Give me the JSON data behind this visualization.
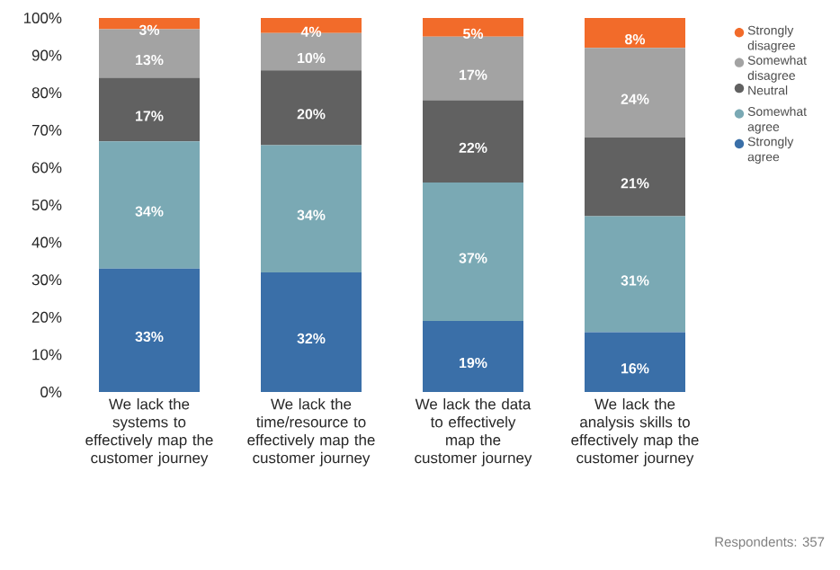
{
  "chart_data": {
    "type": "bar",
    "stacked": true,
    "categories": [
      "We lack the systems to effectively map the customer journey",
      "We lack the time/resource to effectively map the customer journey",
      "We lack the data to effectively map the customer journey",
      "We lack the analysis skills to effectively map the customer journey"
    ],
    "series": [
      {
        "name": "Strongly agree",
        "color": "#3a6fa8",
        "values": [
          33,
          32,
          19,
          16
        ],
        "value_labels": [
          "33%",
          "32%",
          "19%",
          "16%"
        ]
      },
      {
        "name": "Somewhat agree",
        "color": "#7aa9b4",
        "values": [
          34,
          34,
          37,
          31
        ],
        "value_labels": [
          "34%",
          "34%",
          "37%",
          "31%"
        ]
      },
      {
        "name": "Neutral",
        "color": "#616161",
        "values": [
          17,
          20,
          22,
          21
        ],
        "value_labels": [
          "17%",
          "20%",
          "22%",
          "21%"
        ]
      },
      {
        "name": "Somewhat disagree",
        "color": "#a3a3a3",
        "values": [
          13,
          10,
          17,
          24
        ],
        "value_labels": [
          "13%",
          "10%",
          "17%",
          "24%"
        ]
      },
      {
        "name": "Strongly disagree",
        "color": "#f26b2a",
        "values": [
          3,
          4,
          5,
          8
        ],
        "value_labels": [
          "3%",
          "4%",
          "5%",
          "8%"
        ]
      }
    ],
    "ylim": [
      0,
      100
    ],
    "yticks": [
      {
        "value": 0,
        "label": "0%"
      },
      {
        "value": 10,
        "label": "10%"
      },
      {
        "value": 20,
        "label": "20%"
      },
      {
        "value": 30,
        "label": "30%"
      },
      {
        "value": 40,
        "label": "40%"
      },
      {
        "value": 50,
        "label": "50%"
      },
      {
        "value": 60,
        "label": "60%"
      },
      {
        "value": 70,
        "label": "70%"
      },
      {
        "value": 80,
        "label": "80%"
      },
      {
        "value": 90,
        "label": "90%"
      },
      {
        "value": 100,
        "label": "100%"
      }
    ],
    "legend": "right",
    "annotations": [
      "Respondents: 357"
    ]
  }
}
